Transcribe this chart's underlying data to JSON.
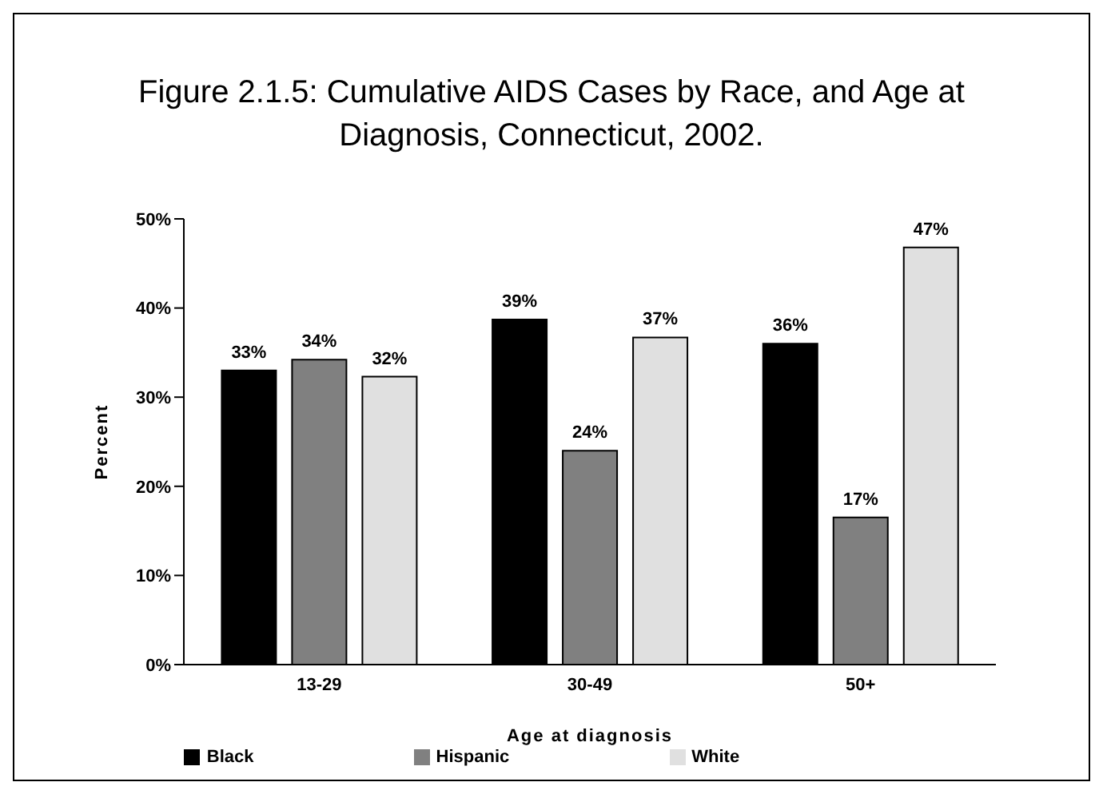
{
  "chart_data": {
    "type": "bar",
    "title": "Figure 2.1.5:  Cumulative AIDS Cases by Race, and Age at Diagnosis, Connecticut, 2002.",
    "xlabel": "Age at diagnosis",
    "ylabel": "Percent",
    "categories": [
      "13-29",
      "30-49",
      "50+"
    ],
    "series": [
      {
        "name": "Black",
        "color": "#000000",
        "values": [
          33,
          38.7,
          36
        ],
        "value_labels": [
          "33%",
          "39%",
          "36%"
        ]
      },
      {
        "name": "Hispanic",
        "color": "#808080",
        "values": [
          34.2,
          24,
          16.5
        ],
        "value_labels": [
          "34%",
          "24%",
          "17%"
        ]
      },
      {
        "name": "White",
        "color": "#e0e0e0",
        "values": [
          32.3,
          36.7,
          46.8
        ],
        "value_labels": [
          "32%",
          "37%",
          "47%"
        ]
      }
    ],
    "ylim": [
      0,
      50
    ],
    "yticks": [
      {
        "value": 0,
        "label": "0%"
      },
      {
        "value": 10,
        "label": "10%"
      },
      {
        "value": 20,
        "label": "20%"
      },
      {
        "value": 30,
        "label": "30%"
      },
      {
        "value": 40,
        "label": "40%"
      },
      {
        "value": 50,
        "label": "50%"
      }
    ],
    "grid": false,
    "legend": "bottom"
  }
}
